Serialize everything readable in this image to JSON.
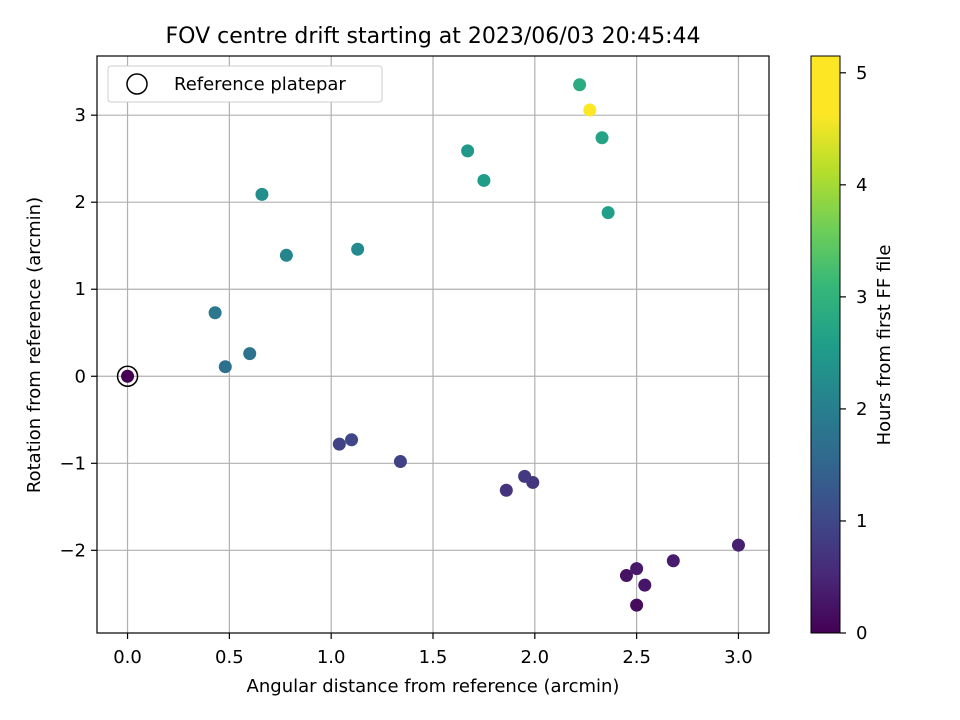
{
  "chart_data": {
    "type": "scatter",
    "title": "FOV centre drift starting at 2023/06/03 20:45:44",
    "xlabel": "Angular distance from reference (arcmin)",
    "ylabel": "Rotation from reference (arcmin)",
    "xlim": [
      -0.15,
      3.15
    ],
    "ylim": [
      -2.95,
      3.68
    ],
    "xticks": [
      "0.0",
      "0.5",
      "1.0",
      "1.5",
      "2.0",
      "2.5",
      "3.0"
    ],
    "yticks": [
      "−2",
      "−1",
      "0",
      "1",
      "2",
      "3"
    ],
    "grid": true,
    "legend": {
      "placement": "top-left",
      "entries": [
        "Reference platepar"
      ]
    },
    "colorbar": {
      "label": "Hours from first FF file",
      "range": [
        0,
        5.15
      ],
      "ticks": [
        "0",
        "1",
        "2",
        "3",
        "4",
        "5"
      ],
      "colormap": "viridis"
    },
    "reference_point": {
      "x": 0.0,
      "y": 0.0
    },
    "points": [
      {
        "x": 0.0,
        "y": 0.0,
        "hours": 0.0
      },
      {
        "x": 2.5,
        "y": -2.63,
        "hours": 0.15
      },
      {
        "x": 2.45,
        "y": -2.29,
        "hours": 0.25
      },
      {
        "x": 2.54,
        "y": -2.4,
        "hours": 0.3
      },
      {
        "x": 2.5,
        "y": -2.21,
        "hours": 0.35
      },
      {
        "x": 2.68,
        "y": -2.12,
        "hours": 0.4
      },
      {
        "x": 3.0,
        "y": -1.94,
        "hours": 0.45
      },
      {
        "x": 1.86,
        "y": -1.31,
        "hours": 0.75
      },
      {
        "x": 1.99,
        "y": -1.22,
        "hours": 0.8
      },
      {
        "x": 1.95,
        "y": -1.15,
        "hours": 0.85
      },
      {
        "x": 1.34,
        "y": -0.98,
        "hours": 1.0
      },
      {
        "x": 1.04,
        "y": -0.78,
        "hours": 1.05
      },
      {
        "x": 1.1,
        "y": -0.73,
        "hours": 1.1
      },
      {
        "x": 0.48,
        "y": 0.11,
        "hours": 1.9
      },
      {
        "x": 0.6,
        "y": 0.26,
        "hours": 1.95
      },
      {
        "x": 0.43,
        "y": 0.73,
        "hours": 2.05
      },
      {
        "x": 0.78,
        "y": 1.39,
        "hours": 2.35
      },
      {
        "x": 1.13,
        "y": 1.46,
        "hours": 2.45
      },
      {
        "x": 0.66,
        "y": 2.09,
        "hours": 2.55
      },
      {
        "x": 1.67,
        "y": 2.59,
        "hours": 2.75
      },
      {
        "x": 1.75,
        "y": 2.25,
        "hours": 2.85
      },
      {
        "x": 2.36,
        "y": 1.88,
        "hours": 2.9
      },
      {
        "x": 2.33,
        "y": 2.74,
        "hours": 3.0
      },
      {
        "x": 2.22,
        "y": 3.35,
        "hours": 3.15
      },
      {
        "x": 2.27,
        "y": 3.06,
        "hours": 5.15
      }
    ]
  }
}
